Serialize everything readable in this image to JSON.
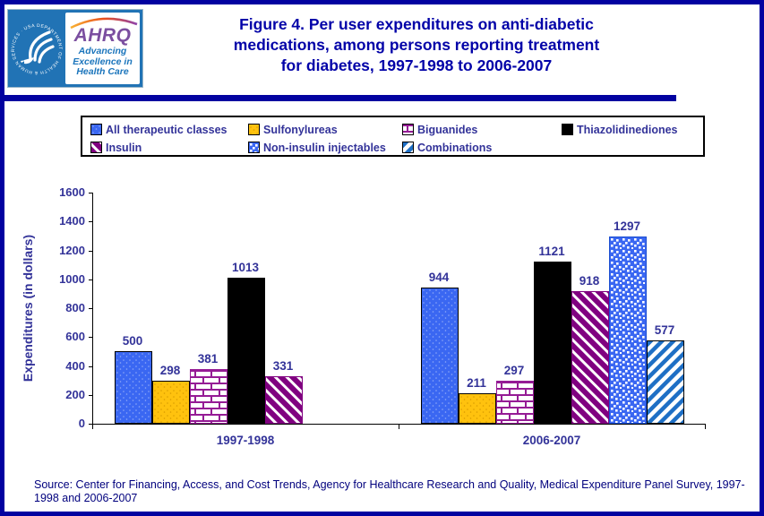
{
  "header": {
    "title": "Figure 4. Per user expenditures on anti-diabetic\nmedications, among persons reporting treatment\nfor diabetes, 1997-1998 to 2006-2007",
    "logo": {
      "seal_text": "DEPARTMENT OF HEALTH & HUMAN SERVICES · USA",
      "wordmark": "AHRQ",
      "tagline": "Advancing\nExcellence in\nHealth Care"
    }
  },
  "legend": {
    "items": [
      {
        "label": "All therapeutic classes",
        "pattern": "blue-dots"
      },
      {
        "label": "Sulfonylureas",
        "pattern": "gold-dots"
      },
      {
        "label": "Biguanides",
        "pattern": "brick"
      },
      {
        "label": "Thiazolidinediones",
        "pattern": "black"
      },
      {
        "label": "Insulin",
        "pattern": "purple-diag"
      },
      {
        "label": "Non-insulin injectables",
        "pattern": "blue-check"
      },
      {
        "label": "Combinations",
        "pattern": "blue-diag"
      }
    ]
  },
  "chart_data": {
    "type": "bar",
    "title": "Figure 4. Per user expenditures on anti-diabetic medications, among persons reporting treatment for diabetes, 1997-1998 to 2006-2007",
    "ylabel": "Expenditures (in dollars)",
    "xlabel": "",
    "ylim": [
      0,
      1600
    ],
    "yticks": [
      0,
      200,
      400,
      600,
      800,
      1000,
      1200,
      1400,
      1600
    ],
    "grid": false,
    "legend_position": "top",
    "categories": [
      "1997-1998",
      "2006-2007"
    ],
    "series": [
      {
        "name": "All therapeutic classes",
        "pattern": "blue-dots",
        "values": [
          500,
          944
        ]
      },
      {
        "name": "Sulfonylureas",
        "pattern": "gold-dots",
        "values": [
          298,
          211
        ]
      },
      {
        "name": "Biguanides",
        "pattern": "brick",
        "values": [
          381,
          297
        ]
      },
      {
        "name": "Thiazolidinediones",
        "pattern": "black",
        "values": [
          1013,
          1121
        ]
      },
      {
        "name": "Insulin",
        "pattern": "purple-diag",
        "values": [
          331,
          918
        ]
      },
      {
        "name": "Non-insulin injectables",
        "pattern": "blue-check",
        "values": [
          null,
          1297
        ]
      },
      {
        "name": "Combinations",
        "pattern": "blue-diag",
        "values": [
          null,
          577
        ]
      }
    ],
    "colors": {
      "bar_blue": "#3A67F2",
      "bar_gold": "#FFC20E",
      "brick_line_purple": "#951B95",
      "bar_black": "#000000",
      "insulin_purple": "#800080",
      "combo_stripe_blue": "#1E6FC5",
      "label_text": "#333399",
      "title_navy": "#0202A8",
      "border_navy": "#0202A0"
    }
  },
  "source": {
    "text": "Source: Center for Financing, Access, and Cost Trends, Agency for Healthcare Research and Quality, Medical Expenditure Panel Survey, 1997-\n1998 and 2006-2007"
  }
}
